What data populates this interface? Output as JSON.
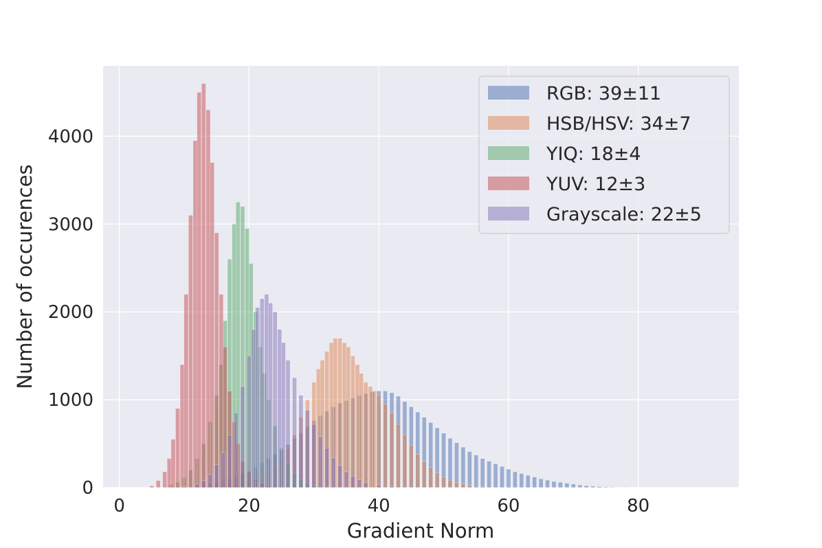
{
  "chart_data": {
    "type": "histogram",
    "xlabel": "Gradient Norm",
    "ylabel": "Number of occurences",
    "xlim": [
      -2.5,
      95.5
    ],
    "ylim": [
      0,
      4800
    ],
    "xticks": [
      0,
      20,
      40,
      60,
      80
    ],
    "yticks": [
      0,
      1000,
      2000,
      3000,
      4000
    ],
    "grid": true,
    "background": "#eaeaf2",
    "legend_position": "top-right",
    "bin_width": 0.65,
    "series": [
      {
        "name": "RGB: 39±11",
        "color": "#4c72b0",
        "opacity": 0.5,
        "bins": [
          [
            8,
            5
          ],
          [
            10,
            10
          ],
          [
            12,
            20
          ],
          [
            13,
            30
          ],
          [
            14,
            45
          ],
          [
            15,
            60
          ],
          [
            16,
            80
          ],
          [
            17,
            100
          ],
          [
            18,
            130
          ],
          [
            19,
            160
          ],
          [
            20,
            190
          ],
          [
            21,
            230
          ],
          [
            22,
            280
          ],
          [
            23,
            330
          ],
          [
            24,
            380
          ],
          [
            25,
            430
          ],
          [
            26,
            490
          ],
          [
            27,
            560
          ],
          [
            28,
            620
          ],
          [
            29,
            690
          ],
          [
            30,
            760
          ],
          [
            31,
            820
          ],
          [
            32,
            870
          ],
          [
            33,
            920
          ],
          [
            34,
            960
          ],
          [
            35,
            990
          ],
          [
            36,
            1020
          ],
          [
            37,
            1050
          ],
          [
            38,
            1070
          ],
          [
            39,
            1090
          ],
          [
            40,
            1100
          ],
          [
            41,
            1100
          ],
          [
            42,
            1080
          ],
          [
            43,
            1040
          ],
          [
            44,
            980
          ],
          [
            45,
            920
          ],
          [
            46,
            860
          ],
          [
            47,
            800
          ],
          [
            48,
            740
          ],
          [
            49,
            680
          ],
          [
            50,
            620
          ],
          [
            51,
            560
          ],
          [
            52,
            510
          ],
          [
            53,
            460
          ],
          [
            54,
            410
          ],
          [
            55,
            370
          ],
          [
            56,
            330
          ],
          [
            57,
            300
          ],
          [
            58,
            270
          ],
          [
            59,
            240
          ],
          [
            60,
            210
          ],
          [
            61,
            180
          ],
          [
            62,
            160
          ],
          [
            63,
            140
          ],
          [
            64,
            120
          ],
          [
            65,
            100
          ],
          [
            66,
            85
          ],
          [
            67,
            70
          ],
          [
            68,
            60
          ],
          [
            69,
            50
          ],
          [
            70,
            40
          ],
          [
            71,
            30
          ],
          [
            72,
            22
          ],
          [
            73,
            16
          ],
          [
            74,
            12
          ],
          [
            75,
            8
          ],
          [
            76,
            5
          ],
          [
            78,
            3
          ]
        ]
      },
      {
        "name": "HSB/HSV: 34±7",
        "color": "#dd8452",
        "opacity": 0.5,
        "bins": [
          [
            16,
            10
          ],
          [
            18,
            30
          ],
          [
            20,
            60
          ],
          [
            22,
            120
          ],
          [
            23,
            170
          ],
          [
            24,
            250
          ],
          [
            25,
            350
          ],
          [
            26,
            450
          ],
          [
            27,
            600
          ],
          [
            28,
            800
          ],
          [
            29,
            1000
          ],
          [
            30,
            1200
          ],
          [
            30.7,
            1350
          ],
          [
            31.3,
            1450
          ],
          [
            32,
            1550
          ],
          [
            32.7,
            1650
          ],
          [
            33.3,
            1700
          ],
          [
            34,
            1700
          ],
          [
            34.7,
            1650
          ],
          [
            35.3,
            1600
          ],
          [
            36,
            1500
          ],
          [
            36.7,
            1400
          ],
          [
            37.3,
            1300
          ],
          [
            38,
            1200
          ],
          [
            38.7,
            1150
          ],
          [
            39.3,
            1100
          ],
          [
            40,
            1050
          ],
          [
            41,
            950
          ],
          [
            42,
            850
          ],
          [
            43,
            720
          ],
          [
            44,
            600
          ],
          [
            45,
            480
          ],
          [
            46,
            380
          ],
          [
            47,
            300
          ],
          [
            48,
            230
          ],
          [
            49,
            170
          ],
          [
            50,
            120
          ],
          [
            51,
            85
          ],
          [
            52,
            60
          ],
          [
            53,
            40
          ],
          [
            54,
            25
          ],
          [
            56,
            12
          ]
        ]
      },
      {
        "name": "YIQ: 18±4",
        "color": "#55a868",
        "opacity": 0.5,
        "bins": [
          [
            8,
            30
          ],
          [
            9,
            60
          ],
          [
            10,
            110
          ],
          [
            11,
            200
          ],
          [
            12,
            330
          ],
          [
            13,
            500
          ],
          [
            14,
            750
          ],
          [
            15,
            1050
          ],
          [
            15.7,
            1400
          ],
          [
            16.3,
            1900
          ],
          [
            17,
            2600
          ],
          [
            17.7,
            3000
          ],
          [
            18.3,
            3250
          ],
          [
            19,
            3200
          ],
          [
            19.7,
            2950
          ],
          [
            20.3,
            2550
          ],
          [
            21,
            2000
          ],
          [
            21.7,
            1600
          ],
          [
            22.3,
            1300
          ],
          [
            23,
            1000
          ],
          [
            24,
            700
          ],
          [
            25,
            450
          ],
          [
            26,
            280
          ],
          [
            27,
            160
          ],
          [
            28,
            90
          ],
          [
            29,
            50
          ],
          [
            30,
            25
          ],
          [
            32,
            10
          ]
        ]
      },
      {
        "name": "YUV: 12±3",
        "color": "#c44e52",
        "opacity": 0.5,
        "bins": [
          [
            5,
            20
          ],
          [
            6,
            80
          ],
          [
            7,
            180
          ],
          [
            7.7,
            330
          ],
          [
            8.3,
            550
          ],
          [
            9,
            900
          ],
          [
            9.7,
            1400
          ],
          [
            10.3,
            2200
          ],
          [
            11,
            3100
          ],
          [
            11.7,
            3950
          ],
          [
            12.3,
            4500
          ],
          [
            13,
            4600
          ],
          [
            13.7,
            4300
          ],
          [
            14.3,
            3700
          ],
          [
            15,
            2900
          ],
          [
            15.7,
            2200
          ],
          [
            16.3,
            1600
          ],
          [
            17,
            1100
          ],
          [
            17.7,
            750
          ],
          [
            18.3,
            500
          ],
          [
            19,
            300
          ],
          [
            20,
            180
          ],
          [
            21,
            100
          ],
          [
            22,
            50
          ],
          [
            23,
            25
          ],
          [
            25,
            10
          ]
        ]
      },
      {
        "name": "Grayscale: 22±5",
        "color": "#8172b3",
        "opacity": 0.5,
        "bins": [
          [
            10,
            10
          ],
          [
            12,
            40
          ],
          [
            13,
            80
          ],
          [
            14,
            150
          ],
          [
            15,
            260
          ],
          [
            16,
            400
          ],
          [
            17,
            600
          ],
          [
            18,
            850
          ],
          [
            19,
            1150
          ],
          [
            20,
            1500
          ],
          [
            20.7,
            1800
          ],
          [
            21.3,
            2050
          ],
          [
            22,
            2150
          ],
          [
            22.7,
            2200
          ],
          [
            23.3,
            2100
          ],
          [
            24,
            2000
          ],
          [
            24.7,
            1800
          ],
          [
            25.3,
            1650
          ],
          [
            26,
            1450
          ],
          [
            27,
            1250
          ],
          [
            28,
            1050
          ],
          [
            29,
            880
          ],
          [
            30,
            720
          ],
          [
            31,
            580
          ],
          [
            32,
            450
          ],
          [
            33,
            340
          ],
          [
            34,
            250
          ],
          [
            35,
            180
          ],
          [
            36,
            130
          ],
          [
            37,
            90
          ],
          [
            38,
            60
          ],
          [
            40,
            30
          ],
          [
            42,
            15
          ]
        ]
      }
    ]
  }
}
